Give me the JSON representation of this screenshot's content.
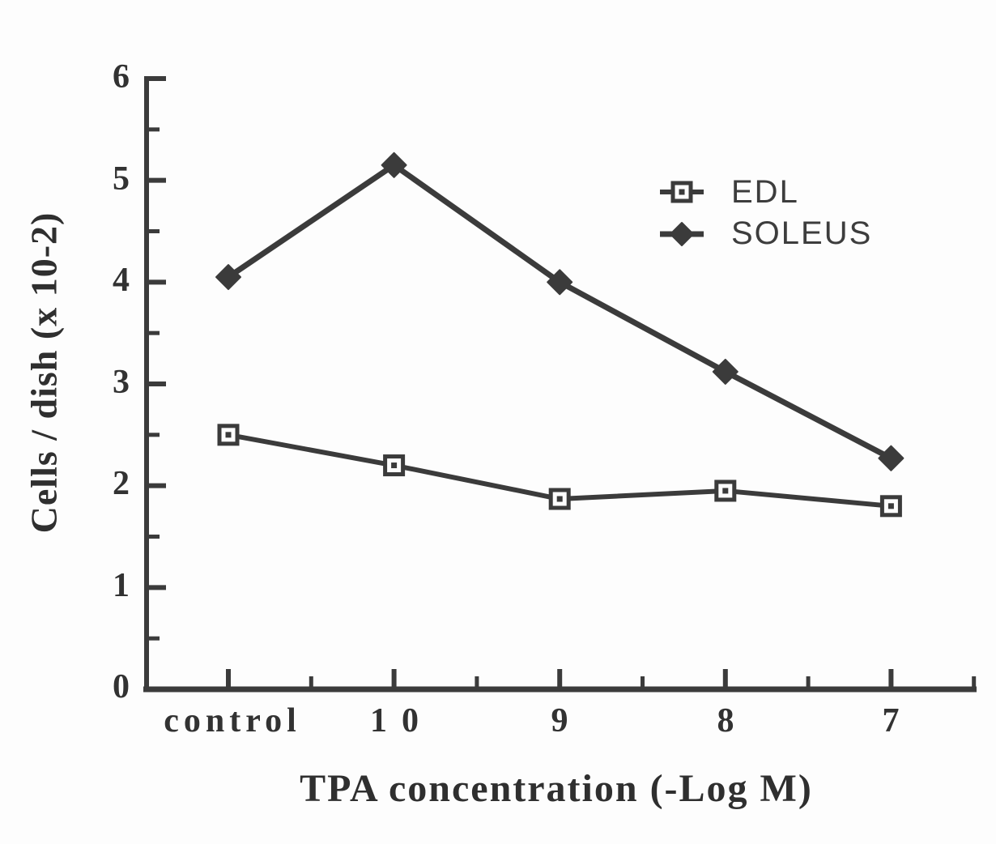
{
  "figure": {
    "background": "#fdfdfd",
    "ink_color": "#3b3b3b",
    "text_color": "#323232"
  },
  "chart_data": {
    "type": "line",
    "title": "",
    "xlabel": "TPA concentration (-Log M)",
    "ylabel": "Cells / dish (x 10-2)",
    "categories": [
      "control",
      "10",
      "9",
      "8",
      "7"
    ],
    "series": [
      {
        "name": "EDL",
        "marker": "open-square-dot",
        "values": [
          2.5,
          2.2,
          1.87,
          1.95,
          1.8
        ]
      },
      {
        "name": "SOLEUS",
        "marker": "filled-diamond",
        "values": [
          4.05,
          5.15,
          4.0,
          3.12,
          2.27
        ]
      }
    ],
    "ylim": [
      0,
      6
    ],
    "y_tick_labels": [
      "6",
      "5",
      "4",
      "3",
      "2",
      "1",
      "0"
    ],
    "y_major_step": 1,
    "y_minor_step": 0.5,
    "grid": false,
    "legend_position": "upper-right"
  }
}
